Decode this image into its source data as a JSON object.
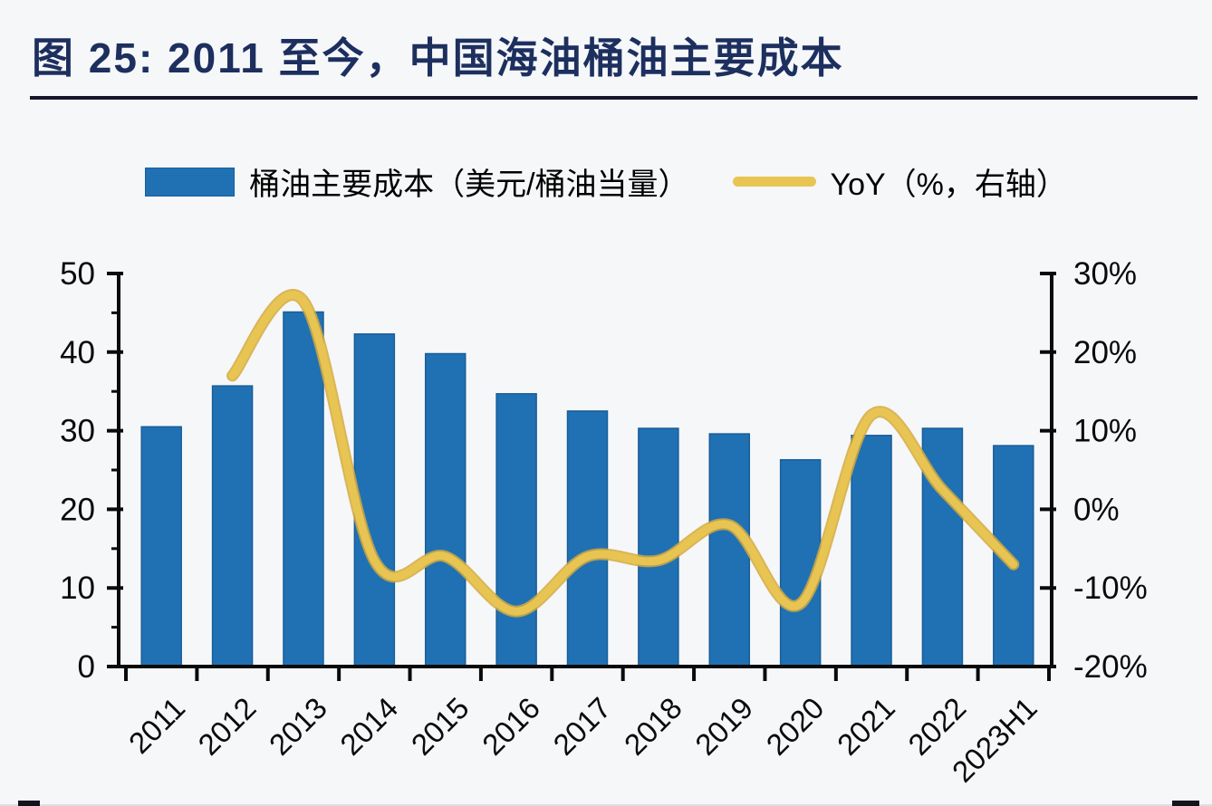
{
  "title": "图 25:  2011 至今，中国海油桶油主要成本",
  "legend": {
    "bar_label": "桶油主要成本（美元/桶油当量）",
    "line_label": "YoY（%，右轴）"
  },
  "chart_data": {
    "type": "bar",
    "title": "图 25: 2011 至今，中国海油桶油主要成本",
    "categories": [
      "2011",
      "2012",
      "2013",
      "2014",
      "2015",
      "2016",
      "2017",
      "2018",
      "2019",
      "2020",
      "2021",
      "2022",
      "2023H1"
    ],
    "series": [
      {
        "name": "桶油主要成本（美元/桶油当量）",
        "type": "bar",
        "axis": "left",
        "values": [
          30.5,
          35.7,
          45.1,
          42.3,
          39.8,
          34.7,
          32.5,
          30.3,
          29.6,
          26.3,
          29.4,
          30.3,
          28.1
        ]
      },
      {
        "name": "YoY（%，右轴）",
        "type": "line",
        "axis": "right",
        "values": [
          null,
          17,
          26.5,
          -6.5,
          -6,
          -13,
          -6,
          -6.5,
          -2,
          -12,
          12,
          2.5,
          -7
        ]
      }
    ],
    "left_axis": {
      "min": 0,
      "max": 30,
      "ymin": 0,
      "ymax": 50,
      "step": 10,
      "tick_labels": [
        "0",
        "10",
        "20",
        "30",
        "40",
        "50"
      ]
    },
    "right_axis": {
      "min": -20,
      "max": 30,
      "step": 10,
      "tick_labels": [
        "-20%",
        "-10%",
        "0%",
        "10%",
        "20%",
        "30%"
      ]
    },
    "grid": false,
    "legend_position": "top",
    "colors": {
      "bar_fill": "#2071b3",
      "bar_edge": "#195e99",
      "line": "#e8c452",
      "line_edge": "#d3a93c",
      "axis": "#0a0a0a",
      "title": "#1d2f5e",
      "background": "#f5f7f9"
    }
  }
}
